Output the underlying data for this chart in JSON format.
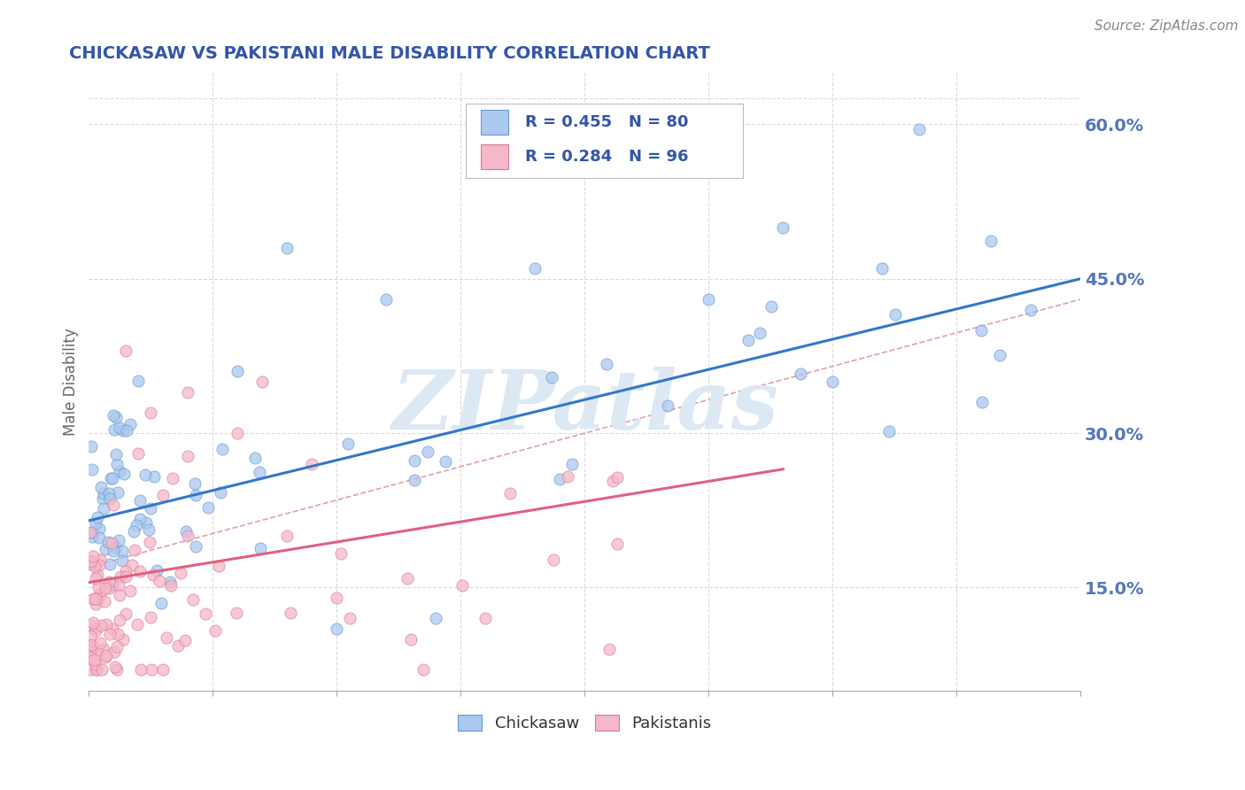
{
  "title": "CHICKASAW VS PAKISTANI MALE DISABILITY CORRELATION CHART",
  "source_text": "Source: ZipAtlas.com",
  "xlim": [
    0.0,
    0.4
  ],
  "ylim": [
    0.05,
    0.65
  ],
  "ylabel_ticks": [
    0.15,
    0.3,
    0.45,
    0.6
  ],
  "ylabel_tick_labels": [
    "15.0%",
    "30.0%",
    "45.0%",
    "60.0%"
  ],
  "chickasaw_R": 0.455,
  "chickasaw_N": 80,
  "pakistani_R": 0.284,
  "pakistani_N": 96,
  "chickasaw_dot_color": "#aac8f0",
  "chickasaw_dot_edge": "#6699cc",
  "pakistani_dot_color": "#f5b8c8",
  "pakistani_dot_edge": "#dd7799",
  "chickasaw_line_color": "#3377cc",
  "pakistani_line_color": "#e06080",
  "dashed_line_color": "#e0a0b0",
  "background_color": "#ffffff",
  "title_color": "#3355aa",
  "axis_label_color": "#5577bb",
  "watermark_color": "#dde8f5",
  "grid_color": "#cccccc",
  "legend_text_color": "#3355aa",
  "legend_border_color": "#bbbbcc"
}
